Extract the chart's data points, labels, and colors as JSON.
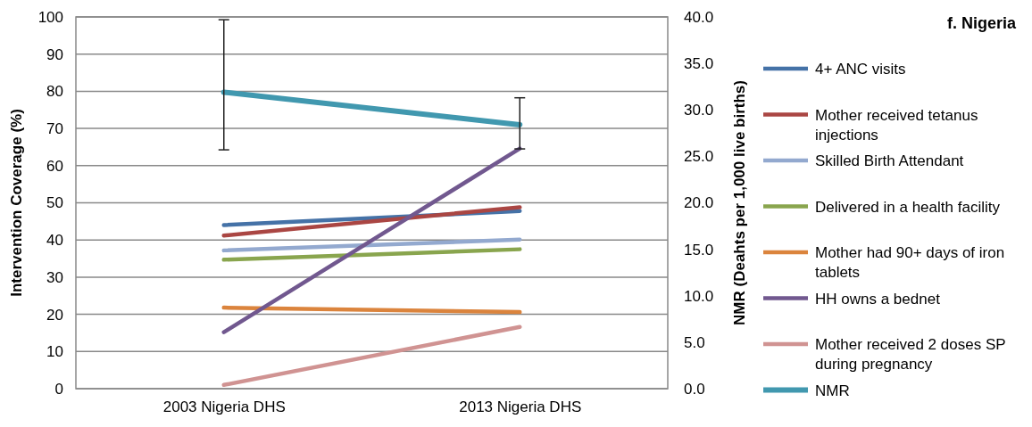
{
  "chart_data": {
    "type": "line",
    "title": "f. Nigeria",
    "categories": [
      "2003 Nigeria DHS",
      "2013 Nigeria DHS"
    ],
    "ylabel": "Intervention Coverage (%)",
    "y2label": "NMR (Deahts per 1,000 live births)",
    "ylim": [
      0,
      100
    ],
    "yticks": [
      0,
      10,
      20,
      30,
      40,
      50,
      60,
      70,
      80,
      90,
      100
    ],
    "y2lim": [
      0,
      40
    ],
    "y2ticks": [
      {
        "value": 0,
        "label": "0.0"
      },
      {
        "value": 5,
        "label": "5.0"
      },
      {
        "value": 10,
        "label": "10.0"
      },
      {
        "value": 15,
        "label": "15.0"
      },
      {
        "value": 20,
        "label": "20.0"
      },
      {
        "value": 25,
        "label": "25.0"
      },
      {
        "value": 30,
        "label": "30.0"
      },
      {
        "value": 35,
        "label": "35.0"
      },
      {
        "value": 40,
        "label": "40.0"
      }
    ],
    "grid": "y",
    "legend": "right",
    "marker": "none",
    "line_style": "solid",
    "series": [
      {
        "name": "4+ ANC visits",
        "color": "#4572a7",
        "values": [
          44,
          47.8
        ]
      },
      {
        "name": "Mother received tetanus injections",
        "color": "#aa4643",
        "values": [
          41.2,
          48.8
        ]
      },
      {
        "name": "Skilled Birth Attendant",
        "color": "#93a9cf",
        "values": [
          37.2,
          40.1
        ]
      },
      {
        "name": "Delivered in a health facility",
        "color": "#89a54e",
        "values": [
          34.7,
          37.5
        ]
      },
      {
        "name": "Mother had 90+ days of iron tablets",
        "color": "#db843d",
        "values": [
          21.8,
          20.6
        ]
      },
      {
        "name": "HH owns a bednet",
        "color": "#71588f",
        "values": [
          15.2,
          64.6
        ]
      },
      {
        "name": "Mother received 2 doses SP during pregnancy",
        "color": "#d09392",
        "values": [
          1.0,
          16.6
        ]
      },
      {
        "name": "NMR",
        "color": "#4198af",
        "axis": "y2",
        "values": [
          31.9,
          28.4
        ],
        "errors": [
          [
            25.7,
            39.7
          ],
          [
            25.8,
            31.3
          ]
        ]
      }
    ]
  }
}
